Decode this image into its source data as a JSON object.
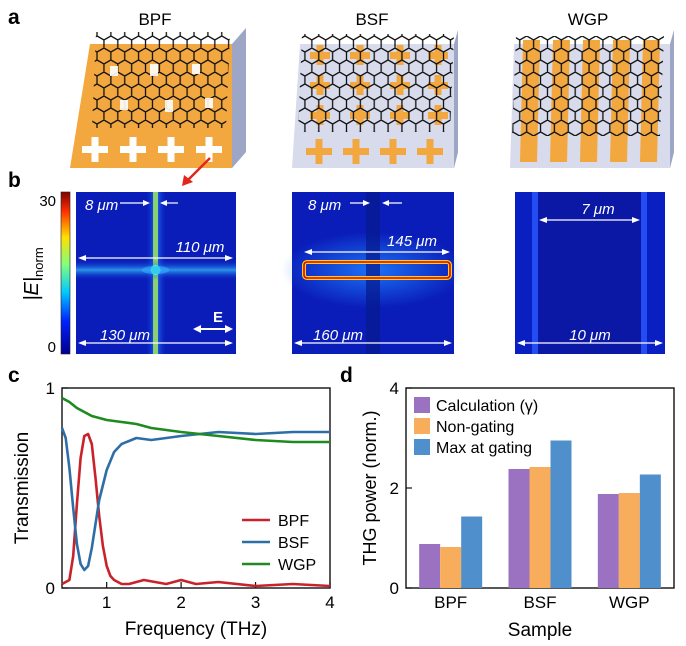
{
  "figure": {
    "panel_labels": {
      "a": "a",
      "b": "b",
      "c": "c",
      "d": "d"
    },
    "schematic_titles": [
      "BPF",
      "BSF",
      "WGP"
    ]
  },
  "field_maps": {
    "colorbar": {
      "label": "|E|",
      "label_sub": "norm",
      "max": "30",
      "min": "0"
    },
    "annotations": {
      "bpf": {
        "top": "8 μm",
        "mid": "110 μm",
        "bottom": "130 μm",
        "pol": "E"
      },
      "bsf": {
        "top": "8 μm",
        "mid": "145 μm",
        "bottom": "160 μm"
      },
      "wgp": {
        "top": "7 μm",
        "bottom": "10 μm"
      }
    }
  },
  "colors": {
    "bpf": "#c8232b",
    "bsf": "#2e6ea6",
    "wgp": "#1f8a1f",
    "calc": "#9b72c2",
    "nongate": "#f8ad5c",
    "maxgate": "#4f8fcb",
    "metal": "#f2a73f"
  },
  "chart_data": [
    {
      "type": "line",
      "panel": "c",
      "xlabel": "Frequency (THz)",
      "ylabel": "Transmission",
      "xlim": [
        0.4,
        4.0
      ],
      "ylim": [
        0,
        1
      ],
      "xticks": [
        "1",
        "2",
        "3",
        "4"
      ],
      "yticks": [
        "0",
        "1"
      ],
      "series": [
        {
          "name": "BPF",
          "x": [
            0.4,
            0.5,
            0.55,
            0.6,
            0.65,
            0.7,
            0.75,
            0.8,
            0.85,
            0.9,
            0.95,
            1.0,
            1.05,
            1.1,
            1.2,
            1.3,
            1.5,
            1.8,
            2.0,
            2.2,
            2.5,
            3.0,
            3.5,
            4.0
          ],
          "y": [
            0.02,
            0.04,
            0.16,
            0.42,
            0.65,
            0.76,
            0.77,
            0.72,
            0.55,
            0.36,
            0.21,
            0.11,
            0.06,
            0.04,
            0.02,
            0.02,
            0.04,
            0.02,
            0.04,
            0.02,
            0.03,
            0.01,
            0.02,
            0.01
          ]
        },
        {
          "name": "BSF",
          "x": [
            0.4,
            0.45,
            0.5,
            0.55,
            0.6,
            0.65,
            0.7,
            0.75,
            0.8,
            0.85,
            0.9,
            1.0,
            1.1,
            1.2,
            1.4,
            1.6,
            1.8,
            2.0,
            2.5,
            3.0,
            3.5,
            4.0
          ],
          "y": [
            0.8,
            0.75,
            0.6,
            0.4,
            0.22,
            0.12,
            0.09,
            0.11,
            0.2,
            0.32,
            0.44,
            0.59,
            0.68,
            0.72,
            0.75,
            0.74,
            0.75,
            0.76,
            0.78,
            0.77,
            0.78,
            0.78
          ]
        },
        {
          "name": "WGP",
          "x": [
            0.4,
            0.5,
            0.6,
            0.8,
            1.0,
            1.2,
            1.4,
            1.6,
            1.8,
            2.0,
            2.5,
            3.0,
            3.5,
            4.0
          ],
          "y": [
            0.95,
            0.93,
            0.9,
            0.86,
            0.84,
            0.83,
            0.82,
            0.8,
            0.79,
            0.78,
            0.76,
            0.74,
            0.73,
            0.73
          ]
        }
      ],
      "legend": "bottom-right"
    },
    {
      "type": "bar",
      "panel": "d",
      "xlabel": "Sample",
      "ylabel": "THG power (norm.)",
      "categories": [
        "BPF",
        "BSF",
        "WGP"
      ],
      "ylim": [
        0,
        4
      ],
      "yticks": [
        "0",
        "2",
        "4"
      ],
      "series": [
        {
          "name": "Calculation (γ)",
          "values": [
            0.88,
            2.38,
            1.88
          ]
        },
        {
          "name": "Non-gating",
          "values": [
            0.82,
            2.42,
            1.9
          ]
        },
        {
          "name": "Max at gating",
          "values": [
            1.43,
            2.95,
            2.27
          ]
        }
      ],
      "legend": "top-left"
    }
  ]
}
